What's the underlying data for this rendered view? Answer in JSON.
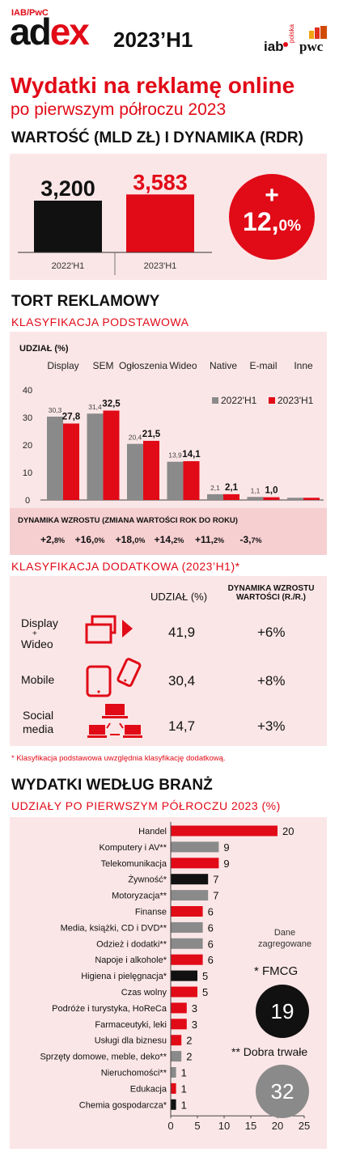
{
  "header": {
    "org": "IAB/PwC",
    "brand_ad": "ad",
    "brand_ex": "ex",
    "period": "2023’H1",
    "logo_iab": "iab",
    "logo_polska": "polska",
    "logo_pwc": "pwc",
    "title": "Wydatki na reklamę online",
    "subtitle": "po pierwszym półroczu 2023"
  },
  "colors": {
    "accent": "#e10a17",
    "gray": "#8a8a8a",
    "black": "#111111",
    "panel": "#fbe6e7"
  },
  "value_section": {
    "heading": "WARTOŚĆ (MLD ZŁ) I DYNAMIKA (RDR)",
    "growth_sign": "+",
    "growth_int": "12,",
    "growth_dec": "0%"
  },
  "tort": {
    "heading": "TORT REKLAMOWY",
    "subheading": "KLASYFIKACJA PODSTAWOWA",
    "share_label": "UDZIAŁ (%)",
    "dynamics_label": "DYNAMIKA WZROSTU (ZMIANA WARTOŚCI ROK DO ROKU)",
    "dynamics": [
      {
        "main": "+2,",
        "dec": "8%"
      },
      {
        "main": "+16,",
        "dec": "0%"
      },
      {
        "main": "+18,",
        "dec": "0%"
      },
      {
        "main": "+14,",
        "dec": "2%"
      },
      {
        "main": "+11,",
        "dec": "2%"
      },
      {
        "main": "-3,",
        "dec": "7%"
      }
    ]
  },
  "extra": {
    "heading": "KLASYFIKACJA DODATKOWA (2023’H1)*",
    "col_share": "UDZIAŁ (%)",
    "col_dyn_line1": "DYNAMIKA WZROSTU",
    "col_dyn_line2": "WARTOŚCI (R./R.)",
    "rows": [
      {
        "label1": "Display",
        "label2": "+",
        "label3": "Wideo",
        "share": "41,9",
        "dyn": "+6%",
        "icon": "display-video-icon"
      },
      {
        "label1": "Mobile",
        "label2": "",
        "label3": "",
        "share": "30,4",
        "dyn": "+8%",
        "icon": "mobile-icon"
      },
      {
        "label1": "Social",
        "label2": "media",
        "label3": "",
        "share": "14,7",
        "dyn": "+3%",
        "icon": "social-media-icon"
      }
    ],
    "footnote": "* Klasyfikacja podstawowa uwzględnia klasyfikację dodatkową."
  },
  "branze": {
    "heading": "WYDATKI WEDŁUG BRANŻ",
    "subheading": "UDZIAŁY PO PIERWSZYM PÓŁROCZU 2023 (%)",
    "agg_title1": "Dane",
    "agg_title2": "zagregowane",
    "fmcg_label": "* FMCG",
    "fmcg_value": "19",
    "durable_label": "** Dobra trwałe",
    "durable_value": "32"
  },
  "chart_data": [
    {
      "type": "bar",
      "categories": [
        "2022'H1",
        "2023'H1"
      ],
      "values": [
        3.2,
        3.583
      ],
      "value_labels": [
        "3,200",
        "3,583"
      ],
      "colors": [
        "#111111",
        "#e10a17"
      ],
      "title": "WARTOŚĆ (MLD ZŁ) I DYNAMIKA (RDR)"
    },
    {
      "type": "bar",
      "categories": [
        "Display",
        "SEM",
        "Ogłoszenia",
        "Wideo",
        "Native",
        "E-mail",
        "Inne"
      ],
      "series": [
        {
          "name": "2022'H1",
          "values": [
            30.3,
            31.4,
            20.4,
            13.9,
            2.1,
            1.1,
            0.8
          ],
          "labels": [
            "30,3",
            "31,4",
            "20,4",
            "13,9",
            "2,1",
            "1,1",
            ""
          ]
        },
        {
          "name": "2023'H1",
          "values": [
            27.8,
            32.5,
            21.5,
            14.1,
            2.1,
            1.0,
            0.8
          ],
          "labels": [
            "27,8",
            "32,5",
            "21,5",
            "14,1",
            "2,1",
            "1,0",
            ""
          ]
        }
      ],
      "ylabel": "UDZIAŁ (%)",
      "ylim": [
        0,
        40
      ],
      "yticks": [
        0,
        10,
        20,
        30,
        40
      ],
      "legend": "top-right"
    },
    {
      "type": "bar",
      "orientation": "horizontal",
      "categories": [
        "Handel",
        "Komputery i AV**",
        "Telekomunikacja",
        "Żywność*",
        "Motoryzacja**",
        "Finanse",
        "Media, książki, CD i DVD**",
        "Odzież i dodatki**",
        "Napoje i alkohole*",
        "Higiena i pielęgnacja*",
        "Czas wolny",
        "Podróże i turystyka, HoReCa",
        "Farmaceutyki, leki",
        "Usługi dla biznesu",
        "Sprzęty domowe, meble, deko**",
        "Nieruchomości**",
        "Edukacja",
        "Chemia gospodarcza*"
      ],
      "values": [
        20,
        9,
        9,
        7,
        7,
        6,
        6,
        6,
        6,
        5,
        5,
        3,
        3,
        2,
        2,
        1,
        1,
        1
      ],
      "colors": [
        "#e10a17",
        "#8a8a8a",
        "#e10a17",
        "#111111",
        "#8a8a8a",
        "#e10a17",
        "#8a8a8a",
        "#8a8a8a",
        "#e10a17",
        "#111111",
        "#e10a17",
        "#e10a17",
        "#e10a17",
        "#e10a17",
        "#8a8a8a",
        "#8a8a8a",
        "#e10a17",
        "#111111"
      ],
      "xlim": [
        0,
        25
      ],
      "xticks": [
        0,
        5,
        10,
        15,
        20,
        25
      ],
      "title": "UDZIAŁY PO PIERWSZYM PÓŁROCZU 2023 (%)"
    }
  ]
}
